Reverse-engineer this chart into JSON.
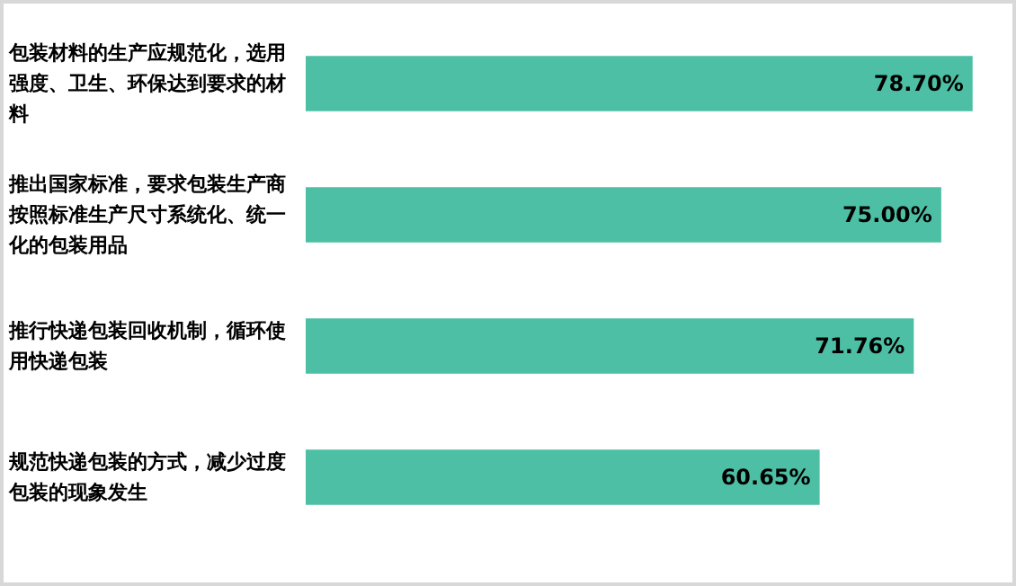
{
  "chart_data": {
    "type": "bar",
    "orientation": "horizontal",
    "categories": [
      "包装材料的生产应规范化，选用强度、卫生、环保达到要求的材料",
      "推出国家标准，要求包装生产商按照标准生产尺寸系统化、统一化的包装用品",
      "推行快递包装回收机制，循环使用快递包装",
      "规范快递包装的方式，减少过度包装的现象发生"
    ],
    "values": [
      78.7,
      75.0,
      71.76,
      60.65
    ],
    "value_labels": [
      "78.70%",
      "75.00%",
      "71.76%",
      "60.65%"
    ],
    "color": "#4dbfa5"
  }
}
